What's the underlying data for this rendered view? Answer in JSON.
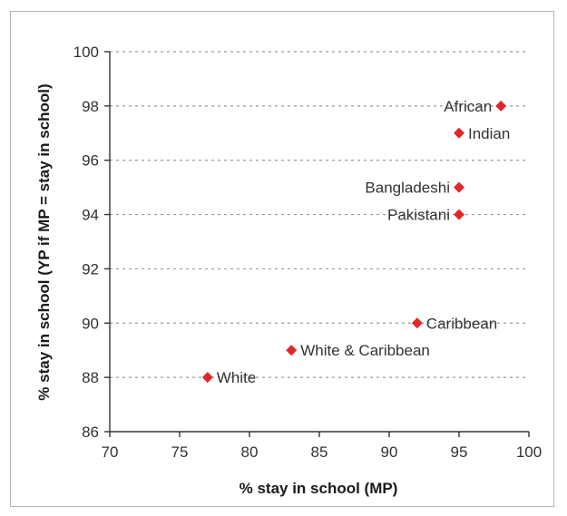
{
  "chart_data": {
    "type": "scatter",
    "title": "",
    "xlabel": "% stay in school (MP)",
    "ylabel": "% stay in school (YP if MP = stay in school)",
    "xlim": [
      70,
      100
    ],
    "ylim": [
      86,
      100
    ],
    "xticks": [
      70,
      75,
      80,
      85,
      90,
      95,
      100
    ],
    "yticks": [
      86,
      88,
      90,
      92,
      94,
      96,
      98,
      100
    ],
    "grid": "horizontal dashed",
    "marker": "diamond",
    "marker_color": "#e3262b",
    "points": [
      {
        "label": "African",
        "x": 98,
        "y": 98,
        "label_side": "left"
      },
      {
        "label": "Indian",
        "x": 95,
        "y": 97,
        "label_side": "right"
      },
      {
        "label": "Bangladeshi",
        "x": 95,
        "y": 95,
        "label_side": "left"
      },
      {
        "label": "Pakistani",
        "x": 95,
        "y": 94,
        "label_side": "left"
      },
      {
        "label": "Caribbean",
        "x": 92,
        "y": 90,
        "label_side": "right"
      },
      {
        "label": "White & Caribbean",
        "x": 83,
        "y": 89,
        "label_side": "right"
      },
      {
        "label": "White",
        "x": 77,
        "y": 88,
        "label_side": "right"
      }
    ]
  }
}
